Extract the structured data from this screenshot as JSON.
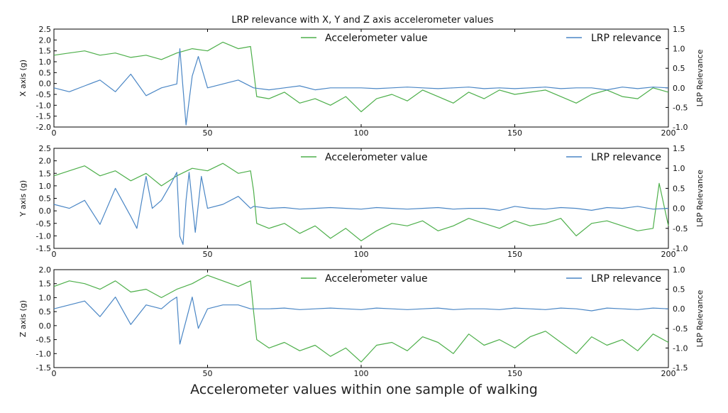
{
  "caption": "Accelerometer values within one sample of walking",
  "chart_data": {
    "type": "line",
    "title": "LRP relevance with X, Y and Z axis accelerometer values",
    "x_range": [
      0,
      200
    ],
    "x_ticks": [
      0,
      50,
      100,
      150,
      200
    ],
    "colors": {
      "accelerometer": "#4daf4a",
      "lrp": "#4a86c5"
    },
    "panels": [
      {
        "ylabel": "X axis (g)",
        "ylabel2": "LRP Relevance",
        "ylim": [
          -2.0,
          2.5
        ],
        "ylim2": [
          -1.0,
          1.5
        ],
        "yticks": [
          "-2.0",
          "-1.5",
          "-1.0",
          "-0.5",
          "0.0",
          "0.5",
          "1.0",
          "1.5",
          "2.0",
          "2.5"
        ],
        "yticks2": [
          "-1.0",
          "-0.5",
          "0.0",
          "0.5",
          "1.0",
          "1.5"
        ],
        "legend": [
          "Accelerometer value",
          "LRP relevance"
        ],
        "series": [
          {
            "name": "Accelerometer value",
            "axis": "left",
            "x": [
              0,
              5,
              10,
              15,
              20,
              25,
              30,
              35,
              40,
              45,
              50,
              55,
              60,
              64,
              65,
              66,
              70,
              75,
              80,
              85,
              90,
              95,
              100,
              105,
              110,
              115,
              120,
              125,
              130,
              135,
              140,
              145,
              150,
              155,
              160,
              165,
              170,
              175,
              180,
              185,
              190,
              195,
              200
            ],
            "y": [
              1.3,
              1.4,
              1.5,
              1.3,
              1.4,
              1.2,
              1.3,
              1.1,
              1.4,
              1.6,
              1.5,
              1.9,
              1.6,
              1.7,
              0.6,
              -0.6,
              -0.7,
              -0.4,
              -0.9,
              -0.7,
              -1.0,
              -0.6,
              -1.3,
              -0.7,
              -0.5,
              -0.8,
              -0.3,
              -0.6,
              -0.9,
              -0.4,
              -0.7,
              -0.3,
              -0.5,
              -0.4,
              -0.3,
              -0.6,
              -0.9,
              -0.5,
              -0.3,
              -0.6,
              -0.7,
              -0.2,
              -0.4
            ]
          },
          {
            "name": "LRP relevance",
            "axis": "right",
            "x": [
              0,
              5,
              10,
              15,
              20,
              25,
              30,
              35,
              40,
              41,
              42,
              43,
              45,
              47,
              50,
              55,
              60,
              65,
              70,
              75,
              80,
              85,
              90,
              95,
              100,
              105,
              110,
              115,
              120,
              125,
              130,
              135,
              140,
              145,
              150,
              155,
              160,
              165,
              170,
              175,
              180,
              185,
              190,
              195,
              200
            ],
            "y": [
              0.0,
              -0.1,
              0.05,
              0.2,
              -0.1,
              0.35,
              -0.2,
              0.0,
              0.1,
              1.0,
              0.0,
              -0.95,
              0.3,
              0.8,
              0.0,
              0.1,
              0.2,
              0.0,
              -0.05,
              0.0,
              0.05,
              -0.05,
              0.0,
              0.0,
              0.0,
              -0.02,
              0.0,
              0.02,
              0.0,
              -0.02,
              0.0,
              0.02,
              -0.02,
              0.0,
              -0.02,
              0.0,
              0.02,
              -0.02,
              0.0,
              0.0,
              -0.05,
              0.02,
              -0.02,
              0.02,
              0.0
            ]
          }
        ]
      },
      {
        "ylabel": "Y axis (g)",
        "ylabel2": "LRP Relevance",
        "ylim": [
          -1.5,
          2.5
        ],
        "ylim2": [
          -1.0,
          1.5
        ],
        "yticks": [
          "-1.5",
          "-1.0",
          "-0.5",
          "0.0",
          "0.5",
          "1.0",
          "1.5",
          "2.0",
          "2.5"
        ],
        "yticks2": [
          "-1.0",
          "-0.5",
          "0.0",
          "0.5",
          "1.0",
          "1.5"
        ],
        "legend": [
          "Accelerometer value",
          "LRP relevance"
        ],
        "series": [
          {
            "name": "Accelerometer value",
            "axis": "left",
            "x": [
              0,
              5,
              10,
              15,
              20,
              25,
              30,
              35,
              40,
              45,
              50,
              55,
              60,
              64,
              65,
              66,
              70,
              75,
              80,
              85,
              90,
              95,
              100,
              105,
              110,
              115,
              120,
              125,
              130,
              135,
              140,
              145,
              150,
              155,
              160,
              165,
              170,
              175,
              180,
              185,
              190,
              195,
              197,
              200
            ],
            "y": [
              1.4,
              1.6,
              1.8,
              1.4,
              1.6,
              1.2,
              1.5,
              1.0,
              1.4,
              1.7,
              1.6,
              1.9,
              1.5,
              1.6,
              0.8,
              -0.5,
              -0.7,
              -0.5,
              -0.9,
              -0.6,
              -1.1,
              -0.7,
              -1.2,
              -0.8,
              -0.5,
              -0.6,
              -0.4,
              -0.8,
              -0.6,
              -0.3,
              -0.5,
              -0.7,
              -0.4,
              -0.6,
              -0.5,
              -0.3,
              -1.0,
              -0.5,
              -0.4,
              -0.6,
              -0.8,
              -0.7,
              1.1,
              -0.6
            ]
          },
          {
            "name": "LRP relevance",
            "axis": "right",
            "x": [
              0,
              5,
              10,
              15,
              20,
              25,
              27,
              30,
              32,
              35,
              38,
              40,
              41,
              42,
              43,
              44,
              46,
              48,
              50,
              55,
              60,
              64,
              65,
              70,
              75,
              80,
              85,
              90,
              95,
              100,
              105,
              110,
              115,
              120,
              125,
              130,
              135,
              140,
              145,
              150,
              155,
              160,
              165,
              170,
              175,
              180,
              185,
              190,
              195,
              200
            ],
            "y": [
              0.1,
              0.0,
              0.2,
              -0.4,
              0.5,
              -0.2,
              -0.5,
              0.8,
              0.0,
              0.2,
              0.6,
              0.9,
              -0.7,
              -0.9,
              0.2,
              0.9,
              -0.6,
              0.8,
              0.0,
              0.1,
              0.3,
              0.0,
              0.05,
              0.0,
              0.02,
              -0.02,
              0.0,
              0.02,
              0.0,
              -0.02,
              0.02,
              0.0,
              -0.02,
              0.0,
              0.02,
              -0.02,
              0.0,
              0.0,
              -0.05,
              0.05,
              0.0,
              -0.02,
              0.02,
              0.0,
              -0.05,
              0.02,
              0.0,
              0.05,
              -0.02,
              0.0
            ]
          }
        ]
      },
      {
        "ylabel": "Z axis (g)",
        "ylabel2": "LRP Relevance",
        "ylim": [
          -1.5,
          2.0
        ],
        "ylim2": [
          -1.5,
          1.0
        ],
        "yticks": [
          "-1.5",
          "-1.0",
          "-0.5",
          "0.0",
          "0.5",
          "1.0",
          "1.5",
          "2.0"
        ],
        "yticks2": [
          "-1.5",
          "-1.0",
          "-0.5",
          "0.0",
          "0.5",
          "1.0"
        ],
        "legend": [
          "Accelerometer value",
          "LRP relevance"
        ],
        "series": [
          {
            "name": "Accelerometer value",
            "axis": "left",
            "x": [
              0,
              5,
              10,
              15,
              20,
              25,
              30,
              35,
              40,
              45,
              50,
              55,
              60,
              64,
              65,
              66,
              70,
              75,
              80,
              85,
              90,
              95,
              100,
              105,
              110,
              115,
              120,
              125,
              130,
              135,
              140,
              145,
              150,
              155,
              160,
              165,
              170,
              175,
              180,
              185,
              190,
              195,
              200
            ],
            "y": [
              1.4,
              1.6,
              1.5,
              1.3,
              1.6,
              1.2,
              1.3,
              1.0,
              1.3,
              1.5,
              1.8,
              1.6,
              1.4,
              1.6,
              0.5,
              -0.5,
              -0.8,
              -0.6,
              -0.9,
              -0.7,
              -1.1,
              -0.8,
              -1.3,
              -0.7,
              -0.6,
              -0.9,
              -0.4,
              -0.6,
              -1.0,
              -0.3,
              -0.7,
              -0.5,
              -0.8,
              -0.4,
              -0.2,
              -0.6,
              -1.0,
              -0.4,
              -0.7,
              -0.5,
              -0.9,
              -0.3,
              -0.6
            ]
          },
          {
            "name": "LRP relevance",
            "axis": "right",
            "x": [
              0,
              5,
              10,
              15,
              20,
              25,
              30,
              35,
              38,
              40,
              41,
              43,
              45,
              47,
              50,
              55,
              60,
              64,
              65,
              70,
              75,
              80,
              85,
              90,
              95,
              100,
              105,
              110,
              115,
              120,
              125,
              130,
              135,
              140,
              145,
              150,
              155,
              160,
              165,
              170,
              175,
              180,
              185,
              190,
              195,
              200
            ],
            "y": [
              0.0,
              0.1,
              0.2,
              -0.2,
              0.3,
              -0.4,
              0.1,
              0.0,
              0.2,
              0.3,
              -0.9,
              -0.3,
              0.3,
              -0.5,
              0.0,
              0.1,
              0.1,
              0.0,
              0.0,
              0.0,
              0.02,
              -0.02,
              0.0,
              0.02,
              0.0,
              -0.02,
              0.02,
              0.0,
              -0.02,
              0.0,
              0.02,
              -0.02,
              0.0,
              0.0,
              -0.02,
              0.02,
              0.0,
              -0.02,
              0.02,
              0.0,
              -0.05,
              0.02,
              0.0,
              -0.02,
              0.02,
              0.0
            ]
          }
        ]
      }
    ]
  }
}
